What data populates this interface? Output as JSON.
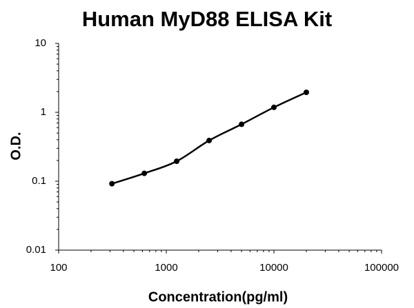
{
  "chart_data": {
    "type": "scatter",
    "title": "Human MyD88 ELISA Kit",
    "xlabel": "Concentration(pg/ml)",
    "ylabel": "O.D.",
    "series": [
      {
        "x": [
          312.5,
          625,
          1250,
          2500,
          5000,
          10000,
          20000
        ],
        "values": [
          0.092,
          0.13,
          0.195,
          0.39,
          0.67,
          1.18,
          1.95
        ],
        "color": "#000000"
      }
    ],
    "xlim": [
      100,
      100000
    ],
    "xticks": [
      100,
      1000,
      10000,
      100000
    ],
    "ylim": [
      0.01,
      10
    ],
    "yticks": [
      0.01,
      0.1,
      1,
      10
    ],
    "xscale": "log",
    "yscale": "log",
    "minor_ticks": true,
    "fit_line": true
  }
}
